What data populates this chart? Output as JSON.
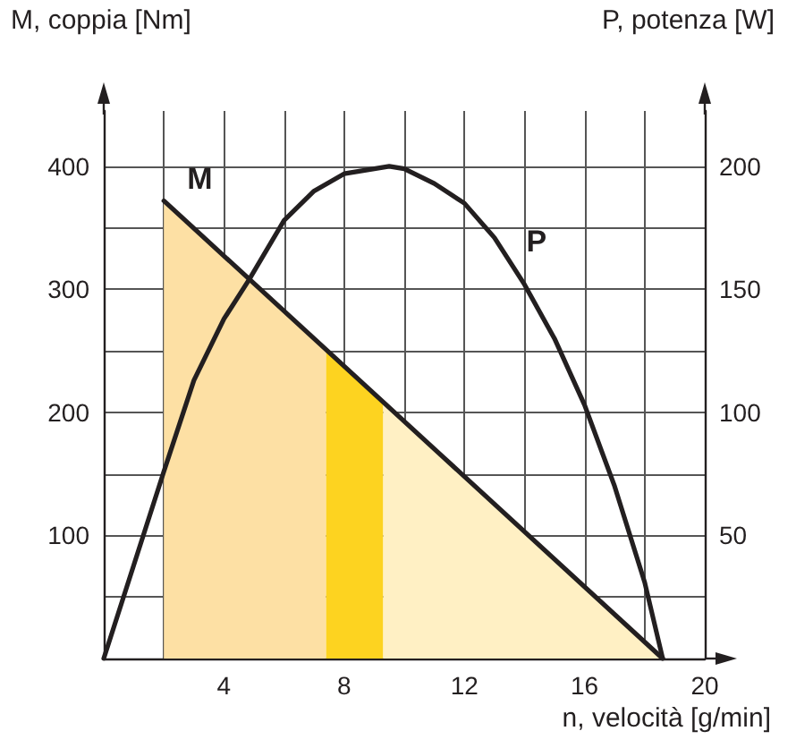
{
  "chart_data": {
    "type": "line",
    "xlabel": "n, velocità [g/min]",
    "ylabel": "M, coppia [Nm]",
    "y2label": "P, potenza [W]",
    "xlim": [
      0,
      20
    ],
    "xticks": [
      {
        "value": 2,
        "label": null
      },
      4,
      {
        "value": 6,
        "label": null
      },
      8,
      {
        "value": 10,
        "label": null
      },
      12,
      {
        "value": 14,
        "label": null
      },
      16,
      {
        "value": 18,
        "label": null
      },
      20
    ],
    "ylim": [
      0,
      445
    ],
    "yticks": [
      {
        "value": 50,
        "label": null
      },
      100,
      {
        "value": 150,
        "label": null
      },
      200,
      {
        "value": 250,
        "label": null
      },
      300,
      {
        "value": 350,
        "label": null
      },
      400
    ],
    "y2lim": [
      0,
      222.5
    ],
    "y2ticks": [
      50,
      100,
      150,
      200
    ],
    "grid": true,
    "legend": false,
    "marker": "none",
    "line_style": "solid",
    "series": [
      {
        "type": "area",
        "color": "#fde0a4",
        "x": [
          2,
          7.4
        ],
        "values": [
          372,
          251
        ]
      },
      {
        "type": "area",
        "color": "#fdd320",
        "x": [
          7.4,
          9.3
        ],
        "values": [
          251,
          208
        ]
      },
      {
        "type": "area",
        "color": "#fff0c4",
        "x": [
          9.3,
          18.6
        ],
        "values": [
          208,
          0
        ]
      },
      {
        "name": "M",
        "color": "#231f20",
        "x": [
          2,
          18.6
        ],
        "values": [
          372,
          0
        ]
      },
      {
        "name": "P",
        "axis": "y2",
        "color": "#231f20",
        "x": [
          0,
          1,
          2,
          3,
          4,
          4.84,
          6,
          7,
          8,
          9.5,
          10,
          11,
          12,
          13,
          14,
          15,
          16,
          17,
          18,
          18.6
        ],
        "values": [
          0,
          38,
          76,
          113,
          138,
          154,
          178,
          190,
          197,
          200,
          199,
          193,
          185,
          171,
          152,
          130,
          103,
          70,
          31,
          0
        ]
      }
    ]
  }
}
